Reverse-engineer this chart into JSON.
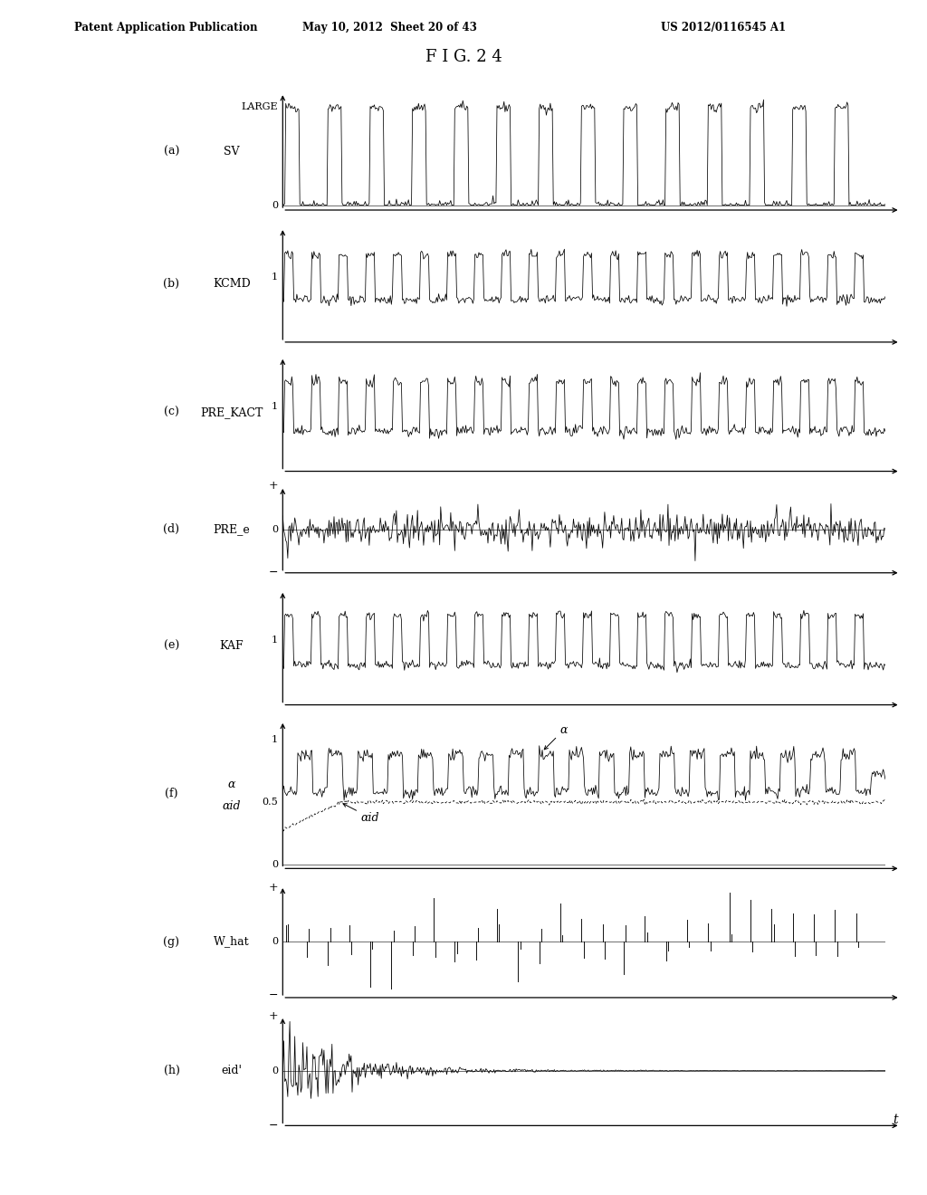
{
  "title": "F I G. 2 4",
  "header_left": "Patent Application Publication",
  "header_mid": "May 10, 2012  Sheet 20 of 43",
  "header_right": "US 2012/0116545 A1",
  "panel_labels": [
    "(a)",
    "(b)",
    "(c)",
    "(d)",
    "(e)",
    "(f)",
    "(g)",
    "(h)"
  ],
  "signal_names": [
    "SV",
    "KCMD",
    "PRE_KACT",
    "PRE_e",
    "KAF",
    "",
    "W_hat",
    "eid'"
  ],
  "bg_color": "#ffffff",
  "line_color": "#000000",
  "seed": 42
}
